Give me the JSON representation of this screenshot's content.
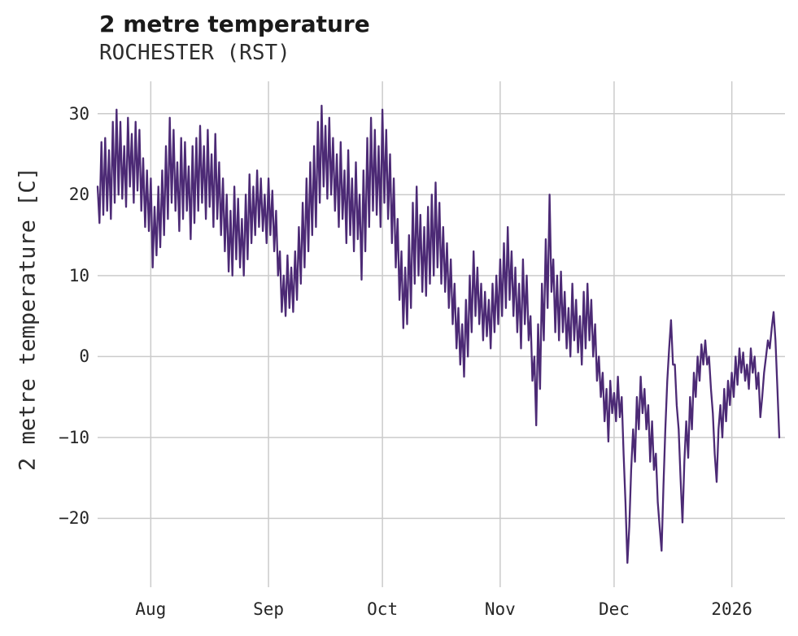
{
  "chart_data": {
    "type": "line",
    "title": "2 metre temperature",
    "subtitle": "ROCHESTER (RST)",
    "xlabel": "",
    "ylabel": "2 metre temperature [C]",
    "series_name": "2 metre temperature at ROCHESTER (RST)",
    "grid": true,
    "legend": false,
    "line_color": "#4c2a75",
    "grid_color": "#cbcbcb",
    "background_color": "#ffffff",
    "y_domain": [
      -28.5,
      34
    ],
    "y_ticks": [
      {
        "label": "30",
        "value": 30
      },
      {
        "label": "20",
        "value": 20
      },
      {
        "label": "10",
        "value": 10
      },
      {
        "label": "0",
        "value": 0
      },
      {
        "label": "−10",
        "value": -10
      },
      {
        "label": "−20",
        "value": -20
      }
    ],
    "x_domain_days": [
      0,
      181
    ],
    "x_step_days": 0.5,
    "x_ticks": [
      {
        "label": "Aug",
        "day": 14
      },
      {
        "label": "Sep",
        "day": 45
      },
      {
        "label": "Oct",
        "day": 75
      },
      {
        "label": "Nov",
        "day": 106
      },
      {
        "label": "Dec",
        "day": 136
      },
      {
        "label": "2026",
        "day": 167
      }
    ],
    "values": [
      21,
      16.5,
      26.5,
      17.5,
      27,
      18,
      25.5,
      17,
      29,
      19,
      30.5,
      20,
      29,
      19.5,
      26,
      18.5,
      29.5,
      21,
      27.5,
      19,
      29,
      20.5,
      28,
      18,
      24.5,
      16,
      23,
      15.5,
      22,
      11,
      18.5,
      12.5,
      21,
      13.5,
      23,
      15,
      26,
      17,
      29.5,
      19,
      28,
      18,
      24,
      15.5,
      27,
      17,
      26.5,
      18,
      23.5,
      14.5,
      26,
      16.5,
      27,
      18,
      28.5,
      19,
      26,
      17,
      28,
      18.5,
      25,
      16,
      27.5,
      17,
      24,
      15,
      22,
      13,
      20,
      10.5,
      18,
      10,
      21,
      12,
      19.5,
      11,
      17,
      10,
      20,
      12,
      22.5,
      14,
      21,
      15,
      23,
      16,
      22,
      15.5,
      20,
      14,
      22,
      15,
      20.5,
      13,
      18,
      10,
      13,
      5.5,
      10,
      5,
      12.5,
      6,
      11,
      5.5,
      13,
      7,
      16,
      9,
      19,
      11,
      22,
      13,
      24,
      15,
      26,
      16,
      29,
      19,
      31,
      21,
      28.5,
      19.5,
      29.5,
      20,
      27,
      18,
      25,
      16,
      26.5,
      17,
      23,
      14,
      25.5,
      15,
      22,
      13,
      24,
      14.5,
      20,
      9.5,
      23,
      13,
      27,
      16,
      29.5,
      18,
      28,
      17.5,
      26,
      16,
      30.5,
      19,
      28,
      17,
      25,
      14,
      22,
      11,
      17,
      7,
      13,
      3.5,
      11,
      4,
      15,
      6,
      19,
      9,
      21,
      10,
      17.5,
      8,
      16,
      7.5,
      18.5,
      9,
      20,
      10,
      21.5,
      11,
      19,
      9,
      16,
      8,
      14,
      6,
      12,
      4,
      9,
      1,
      6,
      -1,
      4,
      -2.5,
      7,
      0,
      10,
      3,
      13,
      5,
      11,
      4,
      9,
      2,
      8,
      2.5,
      7,
      1,
      9,
      3,
      10,
      4,
      12,
      5,
      14,
      6,
      16,
      7,
      13,
      5,
      11,
      3,
      9,
      1,
      12,
      4,
      10,
      2,
      5,
      -3,
      0,
      -8.5,
      4,
      -4,
      9,
      2,
      14.5,
      6,
      20,
      8,
      12,
      3,
      10,
      2,
      10.5,
      3,
      8,
      1,
      6,
      0,
      9,
      2,
      7,
      0.5,
      5,
      -1,
      8,
      1,
      9,
      2,
      7,
      0,
      4,
      -3,
      0,
      -5,
      -2,
      -8,
      -4,
      -10.5,
      -3,
      -7,
      -4.5,
      -8,
      -2.5,
      -7.5,
      -5,
      -12,
      -18,
      -25.5,
      -21,
      -14,
      -9,
      -13,
      -5,
      -9,
      -2.5,
      -7,
      -4,
      -9,
      -6,
      -13,
      -8,
      -14,
      -12,
      -18,
      -21,
      -24,
      -16,
      -9,
      -3,
      1,
      4.5,
      -1,
      -1,
      -6,
      -9,
      -15,
      -20.5,
      -13,
      -8,
      -12.5,
      -5,
      -9,
      -2,
      -5,
      0,
      -3,
      1.5,
      -1,
      2,
      -1,
      0,
      -4,
      -7,
      -12,
      -15.5,
      -9,
      -6,
      -10,
      -4,
      -8,
      -3,
      -6,
      -2,
      -5,
      0,
      -3.5,
      1,
      -2,
      0.5,
      -3,
      -1,
      -4,
      1,
      -2,
      0,
      -4,
      -2,
      -7.5,
      -5,
      -2,
      0,
      2,
      1,
      3.5,
      5.5,
      2,
      -4,
      -10
    ]
  }
}
